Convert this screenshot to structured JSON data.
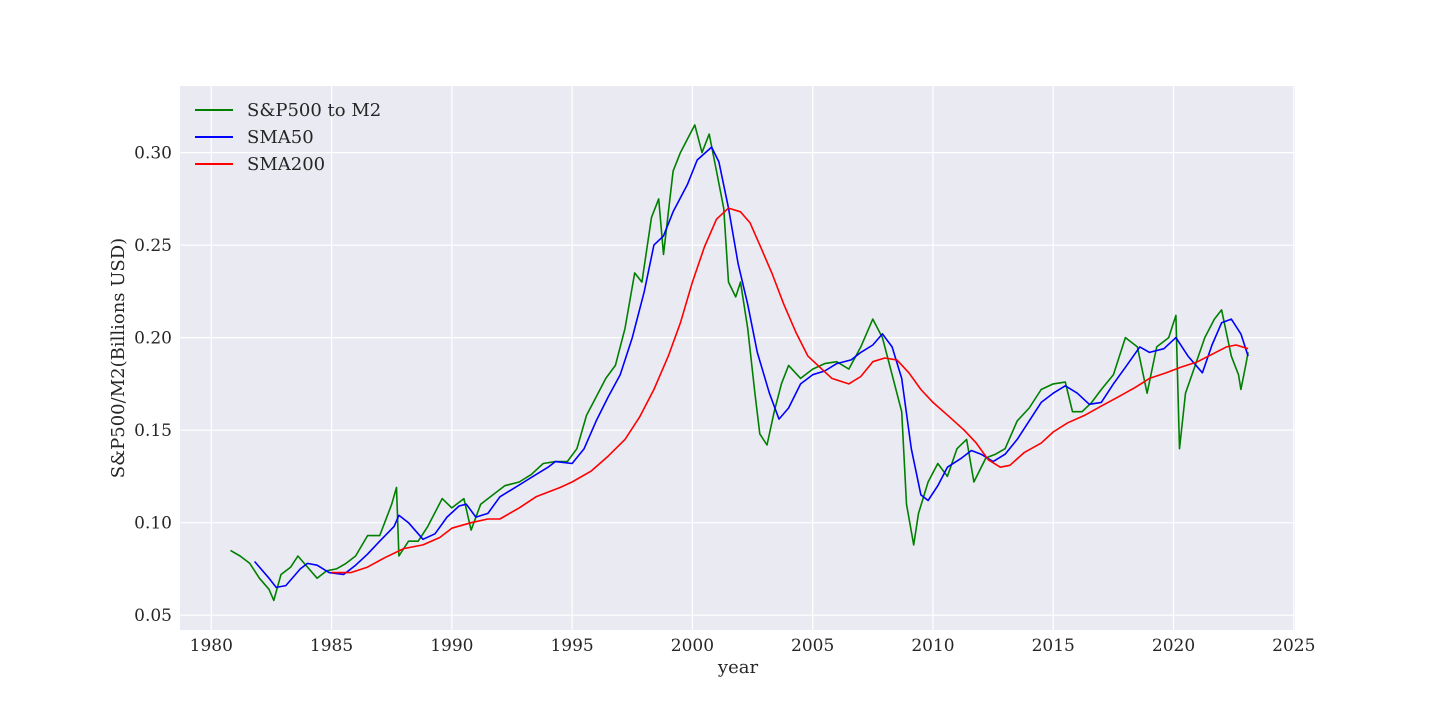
{
  "chart_data": {
    "type": "line",
    "title": "",
    "xlabel": "year",
    "ylabel": "S&P500/M2(Billions USD)",
    "xlim": [
      1978.7,
      2025.05
    ],
    "ylim": [
      0.042,
      0.336
    ],
    "xticks": [
      1980,
      1985,
      1990,
      1995,
      2000,
      2005,
      2010,
      2015,
      2020,
      2025
    ],
    "yticks": [
      0.05,
      0.1,
      0.15,
      0.2,
      0.25,
      0.3
    ],
    "ytick_labels": [
      "0.05",
      "0.10",
      "0.15",
      "0.20",
      "0.25",
      "0.30"
    ],
    "grid": true,
    "background": "#eaeaf2",
    "legend_placement": "top-left",
    "series": [
      {
        "name": "S&P500 to M2",
        "color": "#008000",
        "x": [
          1980.8,
          1981.2,
          1981.6,
          1982.0,
          1982.4,
          1982.6,
          1982.9,
          1983.3,
          1983.6,
          1984.0,
          1984.4,
          1984.8,
          1985.2,
          1985.6,
          1986.0,
          1986.5,
          1987.0,
          1987.5,
          1987.7,
          1987.8,
          1988.2,
          1988.6,
          1989.0,
          1989.6,
          1990.0,
          1990.5,
          1990.8,
          1991.2,
          1991.8,
          1992.2,
          1992.8,
          1993.3,
          1993.8,
          1994.3,
          1994.8,
          1995.2,
          1995.6,
          1996.0,
          1996.4,
          1996.8,
          1997.2,
          1997.6,
          1997.9,
          1998.3,
          1998.6,
          1998.8,
          1999.2,
          1999.5,
          1999.9,
          2000.1,
          2000.4,
          2000.7,
          2001.0,
          2001.3,
          2001.5,
          2001.8,
          2002.0,
          2002.3,
          2002.6,
          2002.8,
          2003.1,
          2003.4,
          2003.7,
          2004.0,
          2004.5,
          2005.0,
          2005.5,
          2006.0,
          2006.5,
          2007.0,
          2007.5,
          2007.9,
          2008.3,
          2008.7,
          2008.9,
          2009.2,
          2009.4,
          2009.8,
          2010.2,
          2010.6,
          2011.0,
          2011.4,
          2011.7,
          2012.2,
          2012.6,
          2013.0,
          2013.5,
          2014.0,
          2014.5,
          2015.0,
          2015.5,
          2015.8,
          2016.2,
          2016.6,
          2017.0,
          2017.5,
          2018.0,
          2018.5,
          2018.9,
          2019.3,
          2019.8,
          2020.1,
          2020.25,
          2020.5,
          2020.9,
          2021.3,
          2021.7,
          2022.0,
          2022.4,
          2022.7,
          2022.8,
          2023.0,
          2023.1
        ],
        "values": [
          0.085,
          0.082,
          0.078,
          0.07,
          0.064,
          0.058,
          0.072,
          0.076,
          0.082,
          0.076,
          0.07,
          0.074,
          0.075,
          0.078,
          0.082,
          0.093,
          0.093,
          0.11,
          0.119,
          0.082,
          0.09,
          0.09,
          0.098,
          0.113,
          0.108,
          0.113,
          0.096,
          0.11,
          0.116,
          0.12,
          0.122,
          0.126,
          0.132,
          0.133,
          0.133,
          0.14,
          0.158,
          0.168,
          0.178,
          0.185,
          0.205,
          0.235,
          0.23,
          0.265,
          0.275,
          0.245,
          0.29,
          0.3,
          0.31,
          0.315,
          0.3,
          0.31,
          0.29,
          0.27,
          0.23,
          0.222,
          0.23,
          0.205,
          0.17,
          0.148,
          0.142,
          0.16,
          0.175,
          0.185,
          0.178,
          0.183,
          0.186,
          0.187,
          0.183,
          0.195,
          0.21,
          0.2,
          0.18,
          0.16,
          0.11,
          0.088,
          0.105,
          0.122,
          0.132,
          0.125,
          0.14,
          0.145,
          0.122,
          0.135,
          0.137,
          0.14,
          0.155,
          0.162,
          0.172,
          0.175,
          0.176,
          0.16,
          0.16,
          0.165,
          0.172,
          0.18,
          0.2,
          0.195,
          0.17,
          0.195,
          0.2,
          0.212,
          0.14,
          0.17,
          0.185,
          0.2,
          0.21,
          0.215,
          0.19,
          0.18,
          0.172,
          0.185,
          0.192
        ]
      },
      {
        "name": "SMA50",
        "color": "#0000ff",
        "x": [
          1981.8,
          1982.4,
          1982.7,
          1983.1,
          1983.7,
          1984.0,
          1984.4,
          1984.9,
          1985.5,
          1986.0,
          1986.5,
          1987.0,
          1987.6,
          1987.8,
          1988.2,
          1988.8,
          1989.3,
          1989.8,
          1990.3,
          1990.6,
          1991.0,
          1991.5,
          1992.0,
          1992.5,
          1993.0,
          1993.5,
          1994.0,
          1994.3,
          1995.0,
          1995.5,
          1996.0,
          1996.5,
          1997.0,
          1997.5,
          1998.0,
          1998.4,
          1998.8,
          1999.2,
          1999.8,
          2000.2,
          2000.8,
          2001.1,
          2001.5,
          2001.9,
          2002.3,
          2002.7,
          2003.2,
          2003.6,
          2004.0,
          2004.5,
          2005.0,
          2005.5,
          2006.0,
          2006.6,
          2007.0,
          2007.5,
          2007.9,
          2008.3,
          2008.7,
          2009.1,
          2009.5,
          2009.8,
          2010.2,
          2010.6,
          2011.2,
          2011.6,
          2012.0,
          2012.5,
          2013.0,
          2013.5,
          2014.0,
          2014.5,
          2015.0,
          2015.5,
          2016.0,
          2016.5,
          2017.0,
          2017.5,
          2018.0,
          2018.6,
          2019.0,
          2019.6,
          2020.1,
          2020.6,
          2021.2,
          2021.6,
          2022.0,
          2022.4,
          2022.8,
          2023.1
        ],
        "values": [
          0.079,
          0.07,
          0.065,
          0.066,
          0.075,
          0.078,
          0.077,
          0.073,
          0.072,
          0.077,
          0.083,
          0.09,
          0.098,
          0.104,
          0.1,
          0.091,
          0.094,
          0.103,
          0.109,
          0.11,
          0.103,
          0.105,
          0.114,
          0.118,
          0.122,
          0.126,
          0.13,
          0.133,
          0.132,
          0.14,
          0.155,
          0.168,
          0.18,
          0.2,
          0.225,
          0.25,
          0.255,
          0.268,
          0.283,
          0.296,
          0.303,
          0.295,
          0.27,
          0.24,
          0.218,
          0.192,
          0.17,
          0.156,
          0.162,
          0.175,
          0.18,
          0.182,
          0.186,
          0.188,
          0.192,
          0.196,
          0.202,
          0.195,
          0.178,
          0.14,
          0.115,
          0.112,
          0.12,
          0.13,
          0.135,
          0.139,
          0.137,
          0.133,
          0.137,
          0.145,
          0.155,
          0.165,
          0.17,
          0.174,
          0.17,
          0.164,
          0.165,
          0.175,
          0.184,
          0.195,
          0.192,
          0.194,
          0.2,
          0.19,
          0.181,
          0.196,
          0.208,
          0.21,
          0.202,
          0.19
        ]
      },
      {
        "name": "SMA200",
        "color": "#ff0000",
        "x": [
          1985.0,
          1985.8,
          1986.5,
          1987.2,
          1988.0,
          1988.8,
          1989.5,
          1990.0,
          1990.8,
          1991.5,
          1992.0,
          1992.8,
          1993.5,
          1994.5,
          1995.0,
          1995.8,
          1996.5,
          1997.2,
          1997.8,
          1998.4,
          1999.0,
          1999.5,
          2000.0,
          2000.5,
          2001.0,
          2001.5,
          2002.0,
          2002.4,
          2002.8,
          2003.3,
          2003.8,
          2004.3,
          2004.8,
          2005.3,
          2005.8,
          2006.5,
          2007.0,
          2007.5,
          2008.0,
          2008.5,
          2009.0,
          2009.5,
          2010.0,
          2010.7,
          2011.3,
          2011.8,
          2012.3,
          2012.8,
          2013.2,
          2013.8,
          2014.5,
          2015.0,
          2015.6,
          2016.3,
          2017.0,
          2017.7,
          2018.4,
          2019.0,
          2019.7,
          2020.3,
          2021.0,
          2021.6,
          2022.2,
          2022.6,
          2023.1
        ],
        "values": [
          0.073,
          0.073,
          0.076,
          0.081,
          0.086,
          0.088,
          0.092,
          0.097,
          0.1,
          0.102,
          0.102,
          0.108,
          0.114,
          0.119,
          0.122,
          0.128,
          0.136,
          0.145,
          0.157,
          0.172,
          0.19,
          0.208,
          0.23,
          0.249,
          0.264,
          0.27,
          0.268,
          0.262,
          0.25,
          0.235,
          0.218,
          0.203,
          0.19,
          0.184,
          0.178,
          0.175,
          0.179,
          0.187,
          0.189,
          0.188,
          0.181,
          0.172,
          0.165,
          0.157,
          0.15,
          0.143,
          0.134,
          0.13,
          0.131,
          0.138,
          0.143,
          0.149,
          0.154,
          0.158,
          0.163,
          0.168,
          0.173,
          0.178,
          0.181,
          0.184,
          0.187,
          0.191,
          0.195,
          0.196,
          0.194
        ]
      }
    ]
  }
}
